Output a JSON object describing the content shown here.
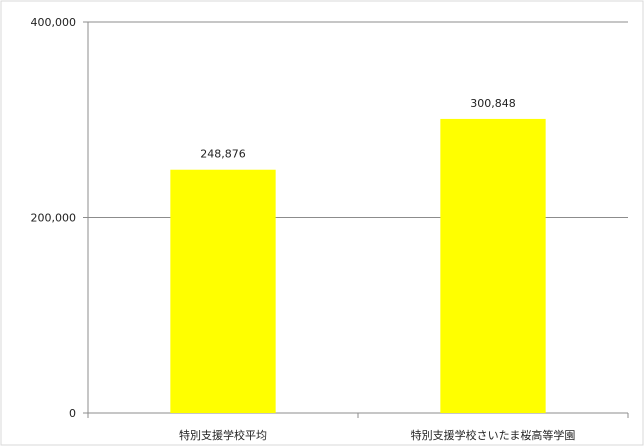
{
  "chart_data": {
    "type": "bar",
    "title": "",
    "xlabel": "",
    "ylabel": "",
    "categories": [
      "特別支援学校平均",
      "特別支援学校さいたま桜高等学園"
    ],
    "values": [
      248876,
      300848
    ],
    "data_labels": [
      "248,876",
      "300,848"
    ],
    "ylim": [
      0,
      400000
    ],
    "yticks": [
      0,
      200000,
      400000
    ],
    "ytick_labels": [
      "0",
      "200,000",
      "400,000"
    ],
    "grid": true,
    "legend": "none",
    "bar_color": "#FFFF00",
    "gridline_color": "#8c8c8c",
    "axis_color": "#8c8c8c"
  }
}
